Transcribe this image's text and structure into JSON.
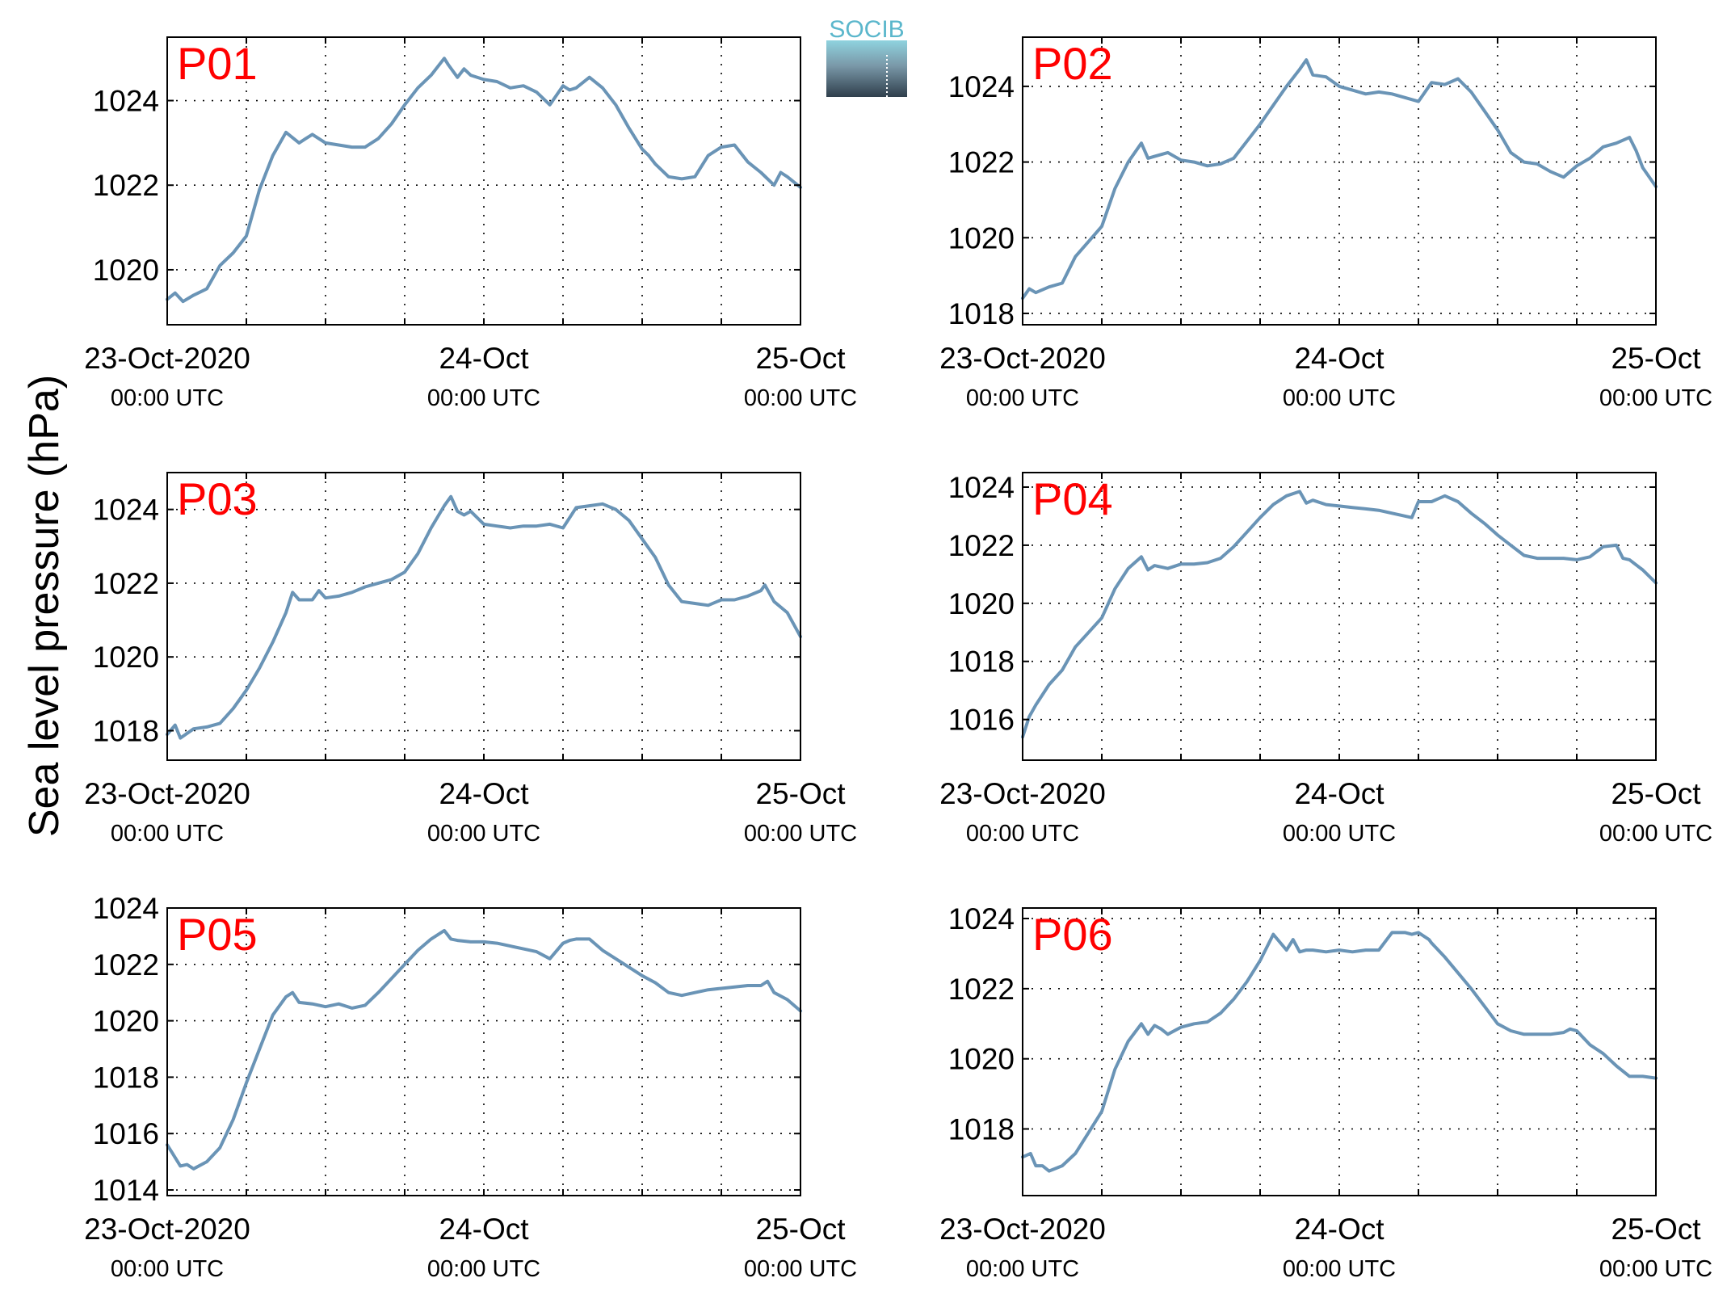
{
  "ylabel": "Sea level pressure (hPa)",
  "logo": {
    "text": "SOCIB",
    "colors": {
      "top": "#7fc4d2",
      "bottom": "#2f3f4c",
      "text": "#5bb7cc"
    }
  },
  "colors": {
    "line": "#6a94b6",
    "panel_label": "#ff0000",
    "frame": "#000000"
  },
  "x_tick_labels": [
    {
      "date": "23-Oct-2020",
      "time": "00:00 UTC"
    },
    {
      "date": "24-Oct",
      "time": "00:00 UTC"
    },
    {
      "date": "25-Oct",
      "time": "00:00 UTC"
    }
  ],
  "chart_data": [
    {
      "type": "line",
      "label": "P01",
      "x_unit": "hours since 23-Oct-2020 00:00 UTC",
      "xlim": [
        0,
        48
      ],
      "x_grid_step_hours": 6,
      "ylim": [
        1018.7,
        1025.5
      ],
      "yticks": [
        1020,
        1022,
        1024
      ],
      "grid": true,
      "x": [
        0,
        0.6,
        1.2,
        2,
        3,
        4,
        5,
        6,
        7,
        8,
        9,
        10,
        10.5,
        11,
        12,
        13,
        14,
        15,
        16,
        17,
        18,
        19,
        20,
        21,
        21.3,
        22,
        22.5,
        23,
        24,
        25,
        26,
        27,
        28,
        29,
        30,
        30.5,
        31,
        32,
        33,
        34,
        35,
        36,
        36.5,
        37,
        38,
        39,
        40,
        41,
        42,
        43,
        44,
        45,
        46,
        46.5,
        47,
        48
      ],
      "y": [
        1019.3,
        1019.45,
        1019.25,
        1019.4,
        1019.55,
        1020.1,
        1020.4,
        1020.8,
        1021.9,
        1022.7,
        1023.25,
        1023.0,
        1023.1,
        1023.2,
        1023.0,
        1022.95,
        1022.9,
        1022.9,
        1023.1,
        1023.45,
        1023.9,
        1024.3,
        1024.6,
        1025.0,
        1024.85,
        1024.55,
        1024.75,
        1024.6,
        1024.5,
        1024.45,
        1024.3,
        1024.35,
        1024.2,
        1023.9,
        1024.35,
        1024.25,
        1024.3,
        1024.55,
        1024.3,
        1023.9,
        1023.35,
        1022.85,
        1022.7,
        1022.5,
        1022.2,
        1022.15,
        1022.2,
        1022.7,
        1022.9,
        1022.95,
        1022.55,
        1022.3,
        1022.0,
        1022.3,
        1022.2,
        1021.95
      ]
    },
    {
      "type": "line",
      "label": "P02",
      "x_unit": "hours since 23-Oct-2020 00:00 UTC",
      "xlim": [
        0,
        48
      ],
      "x_grid_step_hours": 6,
      "ylim": [
        1017.7,
        1025.3
      ],
      "yticks": [
        1018,
        1020,
        1022,
        1024
      ],
      "grid": true,
      "x": [
        0,
        0.5,
        1,
        2,
        3,
        4,
        5,
        6,
        7,
        8,
        9,
        9.5,
        10,
        11,
        12,
        13,
        14,
        15,
        16,
        17,
        18,
        19,
        20,
        21,
        21.5,
        22,
        23,
        24,
        25,
        26,
        27,
        28,
        29,
        30,
        31,
        32,
        33,
        34,
        35,
        36,
        37,
        38,
        39,
        40,
        41,
        42,
        43,
        44,
        45,
        46,
        46.5,
        47,
        48
      ],
      "y": [
        1018.4,
        1018.65,
        1018.55,
        1018.7,
        1018.8,
        1019.5,
        1019.9,
        1020.3,
        1021.3,
        1022.0,
        1022.5,
        1022.1,
        1022.15,
        1022.25,
        1022.05,
        1022.0,
        1021.9,
        1021.95,
        1022.1,
        1022.55,
        1023.0,
        1023.5,
        1024.0,
        1024.45,
        1024.7,
        1024.3,
        1024.25,
        1024.0,
        1023.9,
        1023.8,
        1023.85,
        1023.8,
        1023.7,
        1023.6,
        1024.1,
        1024.05,
        1024.2,
        1023.85,
        1023.35,
        1022.85,
        1022.25,
        1022.0,
        1021.95,
        1021.75,
        1021.6,
        1021.9,
        1022.1,
        1022.4,
        1022.5,
        1022.65,
        1022.3,
        1021.85,
        1021.35
      ]
    },
    {
      "type": "line",
      "label": "P03",
      "x_unit": "hours since 23-Oct-2020 00:00 UTC",
      "xlim": [
        0,
        48
      ],
      "x_grid_step_hours": 6,
      "ylim": [
        1017.2,
        1025.0
      ],
      "yticks": [
        1018,
        1020,
        1022,
        1024
      ],
      "grid": true,
      "x": [
        0,
        0.6,
        1,
        2,
        3,
        4,
        5,
        6,
        6.5,
        7,
        8,
        9,
        9.5,
        10,
        11,
        11.5,
        12,
        13,
        14,
        15,
        16,
        17,
        18,
        19,
        20,
        21,
        21.5,
        22,
        22.5,
        23,
        24,
        25,
        26,
        27,
        28,
        29,
        30,
        31,
        32,
        33,
        34,
        35,
        36,
        37,
        38,
        39,
        40,
        41,
        42,
        43,
        44,
        45,
        45.3,
        46,
        47,
        48
      ],
      "y": [
        1017.9,
        1018.15,
        1017.8,
        1018.05,
        1018.1,
        1018.2,
        1018.6,
        1019.1,
        1019.4,
        1019.7,
        1020.4,
        1021.2,
        1021.75,
        1021.55,
        1021.55,
        1021.8,
        1021.6,
        1021.65,
        1021.75,
        1021.9,
        1022.0,
        1022.1,
        1022.3,
        1022.8,
        1023.5,
        1024.1,
        1024.35,
        1023.95,
        1023.85,
        1023.95,
        1023.6,
        1023.55,
        1023.5,
        1023.55,
        1023.55,
        1023.6,
        1023.5,
        1024.05,
        1024.1,
        1024.15,
        1024.0,
        1023.7,
        1023.2,
        1022.7,
        1021.95,
        1021.5,
        1021.45,
        1021.4,
        1021.55,
        1021.55,
        1021.65,
        1021.8,
        1021.95,
        1021.5,
        1021.2,
        1020.55
      ]
    },
    {
      "type": "line",
      "label": "P04",
      "x_unit": "hours since 23-Oct-2020 00:00 UTC",
      "xlim": [
        0,
        48
      ],
      "x_grid_step_hours": 6,
      "ylim": [
        1014.6,
        1024.5
      ],
      "yticks": [
        1016,
        1018,
        1020,
        1022,
        1024
      ],
      "grid": true,
      "x": [
        0,
        0.5,
        1,
        2,
        3,
        4,
        5,
        6,
        7,
        8,
        9,
        9.5,
        10,
        11,
        12,
        13,
        14,
        15,
        16,
        17,
        18,
        19,
        20,
        21,
        21.5,
        22,
        23,
        24,
        25,
        26,
        27,
        28,
        29,
        29.5,
        30,
        31,
        32,
        33,
        34,
        35,
        36,
        37,
        38,
        39,
        40,
        41,
        42,
        43,
        44,
        45,
        45.5,
        46,
        47,
        48
      ],
      "y": [
        1015.4,
        1016.1,
        1016.5,
        1017.2,
        1017.7,
        1018.5,
        1019.0,
        1019.5,
        1020.5,
        1021.2,
        1021.6,
        1021.15,
        1021.3,
        1021.2,
        1021.35,
        1021.35,
        1021.4,
        1021.55,
        1021.95,
        1022.45,
        1022.95,
        1023.4,
        1023.7,
        1023.85,
        1023.45,
        1023.55,
        1023.4,
        1023.35,
        1023.3,
        1023.25,
        1023.2,
        1023.1,
        1023.0,
        1022.95,
        1023.5,
        1023.5,
        1023.7,
        1023.5,
        1023.1,
        1022.75,
        1022.35,
        1022.0,
        1021.65,
        1021.55,
        1021.55,
        1021.55,
        1021.5,
        1021.6,
        1021.95,
        1022.0,
        1021.55,
        1021.5,
        1021.15,
        1020.7
      ]
    },
    {
      "type": "line",
      "label": "P05",
      "x_unit": "hours since 23-Oct-2020 00:00 UTC",
      "xlim": [
        0,
        48
      ],
      "x_grid_step_hours": 6,
      "ylim": [
        1013.8,
        1024.0
      ],
      "yticks": [
        1014,
        1016,
        1018,
        1020,
        1022,
        1024
      ],
      "grid": true,
      "x": [
        0,
        0.4,
        1,
        1.5,
        2,
        3,
        4,
        5,
        6,
        7,
        8,
        9,
        9.5,
        10,
        11,
        12,
        13,
        14,
        15,
        16,
        17,
        18,
        19,
        20,
        21,
        21.5,
        22,
        23,
        24,
        25,
        26,
        27,
        28,
        29,
        30,
        30.5,
        31,
        32,
        33,
        34,
        35,
        36,
        37,
        38,
        39,
        40,
        41,
        42,
        43,
        44,
        45,
        45.5,
        46,
        47,
        48
      ],
      "y": [
        1015.6,
        1015.3,
        1014.85,
        1014.9,
        1014.75,
        1015.0,
        1015.5,
        1016.5,
        1017.8,
        1019.0,
        1020.2,
        1020.85,
        1021.0,
        1020.65,
        1020.6,
        1020.5,
        1020.6,
        1020.45,
        1020.55,
        1021.0,
        1021.5,
        1022.0,
        1022.5,
        1022.9,
        1023.2,
        1022.9,
        1022.85,
        1022.8,
        1022.8,
        1022.75,
        1022.65,
        1022.55,
        1022.45,
        1022.2,
        1022.75,
        1022.85,
        1022.9,
        1022.9,
        1022.5,
        1022.2,
        1021.9,
        1021.6,
        1021.35,
        1021.0,
        1020.9,
        1021.0,
        1021.1,
        1021.15,
        1021.2,
        1021.25,
        1021.25,
        1021.4,
        1021.0,
        1020.75,
        1020.35
      ]
    },
    {
      "type": "line",
      "label": "P06",
      "x_unit": "hours since 23-Oct-2020 00:00 UTC",
      "xlim": [
        0,
        48
      ],
      "x_grid_step_hours": 6,
      "ylim": [
        1016.1,
        1024.3
      ],
      "yticks": [
        1018,
        1020,
        1022,
        1024
      ],
      "grid": true,
      "x": [
        0,
        0.6,
        1,
        1.5,
        2,
        3,
        4,
        5,
        6,
        7,
        8,
        9,
        9.5,
        10,
        10.5,
        11,
        12,
        13,
        14,
        15,
        16,
        17,
        18,
        19,
        20,
        20.5,
        21,
        21.5,
        22,
        23,
        24,
        25,
        26,
        27,
        28,
        29,
        29.5,
        30,
        30.8,
        31,
        32,
        33,
        34,
        35,
        36,
        37,
        38,
        39,
        40,
        41,
        41.5,
        42,
        43,
        44,
        45,
        46,
        47,
        48
      ],
      "y": [
        1017.2,
        1017.3,
        1016.95,
        1016.95,
        1016.8,
        1016.95,
        1017.3,
        1017.9,
        1018.5,
        1019.7,
        1020.5,
        1021.0,
        1020.7,
        1020.95,
        1020.85,
        1020.7,
        1020.9,
        1021.0,
        1021.05,
        1021.3,
        1021.7,
        1022.2,
        1022.8,
        1023.55,
        1023.1,
        1023.4,
        1023.05,
        1023.1,
        1023.1,
        1023.05,
        1023.1,
        1023.05,
        1023.1,
        1023.1,
        1023.6,
        1023.6,
        1023.55,
        1023.6,
        1023.4,
        1023.3,
        1022.9,
        1022.45,
        1022.0,
        1021.5,
        1021.0,
        1020.8,
        1020.7,
        1020.7,
        1020.7,
        1020.75,
        1020.85,
        1020.8,
        1020.4,
        1020.15,
        1019.8,
        1019.5,
        1019.5,
        1019.45
      ]
    }
  ]
}
